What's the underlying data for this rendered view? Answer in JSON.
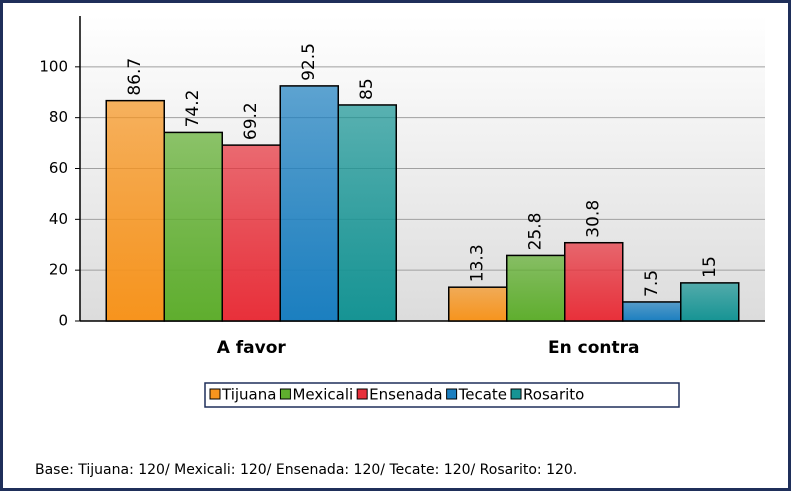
{
  "chart_data": {
    "type": "bar",
    "categories": [
      "A favor",
      "En contra"
    ],
    "series": [
      {
        "name": "Tijuana",
        "color": "#f7941d",
        "values": [
          86.7,
          13.3
        ]
      },
      {
        "name": "Mexicali",
        "color": "#5fae2e",
        "values": [
          74.2,
          25.8
        ]
      },
      {
        "name": "Ensenada",
        "color": "#e8303a",
        "values": [
          69.2,
          30.8
        ]
      },
      {
        "name": "Tecate",
        "color": "#1b7fc0",
        "values": [
          92.5,
          7.5
        ]
      },
      {
        "name": "Rosarito",
        "color": "#169494",
        "values": [
          85,
          15
        ]
      }
    ],
    "ylim": [
      0,
      120
    ],
    "yticks": [
      0,
      20,
      40,
      60,
      80,
      100
    ],
    "grid": true,
    "legend": "bottom",
    "footnote": "Base: Tijuana: 120/ Mexicali: 120/ Ensenada: 120/ Tecate: 120/ Rosarito: 120."
  }
}
